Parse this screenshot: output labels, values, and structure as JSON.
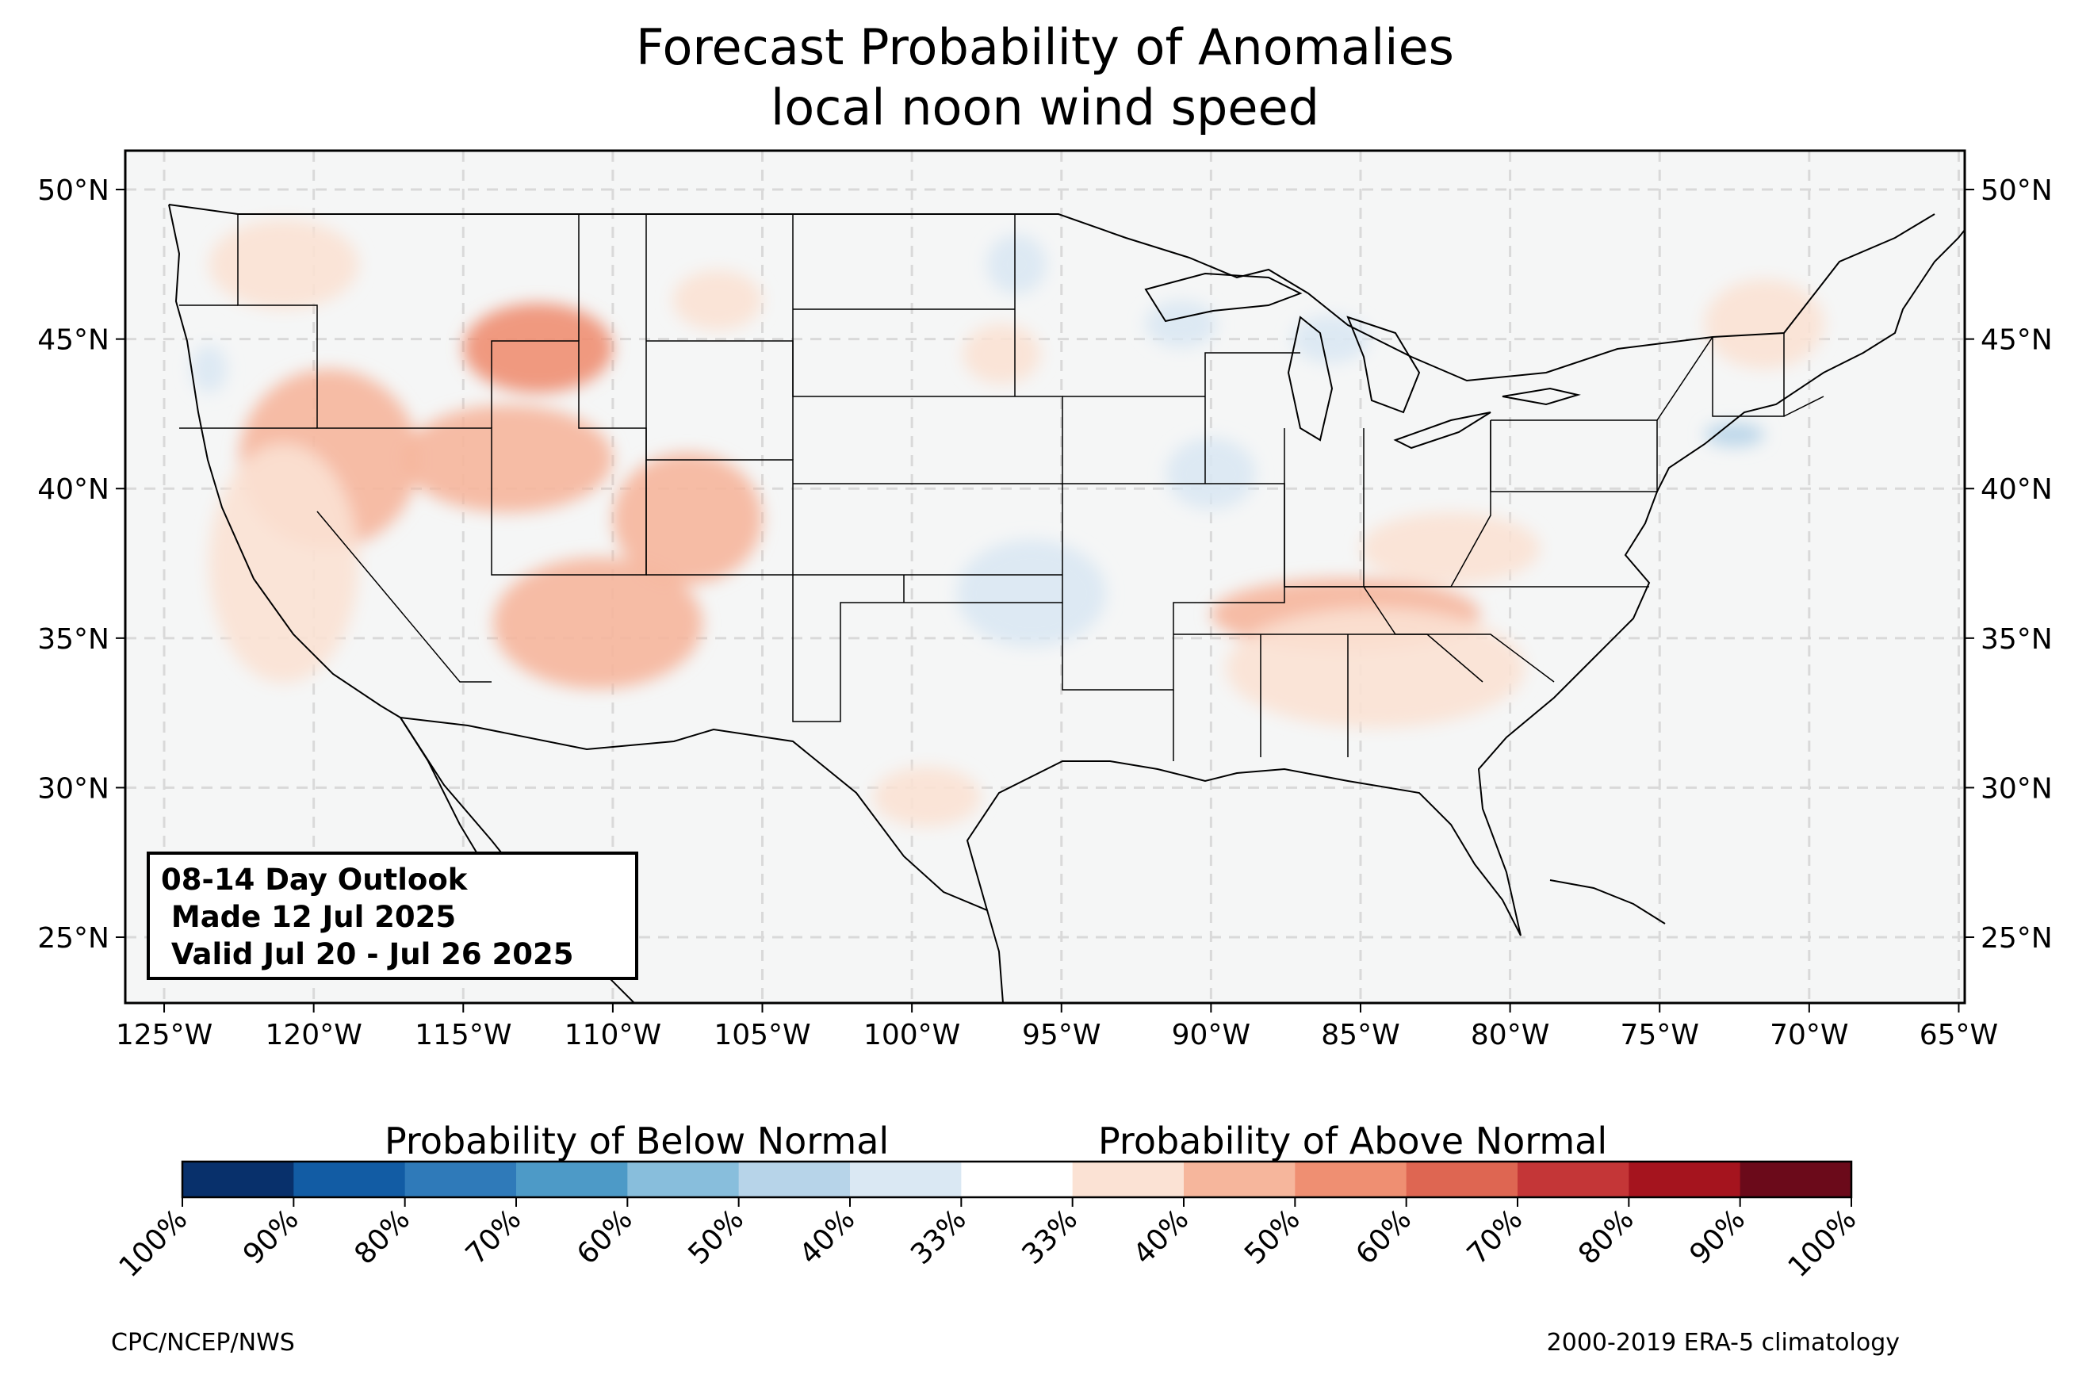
{
  "title": "Forecast Probability of Anomalies",
  "subtitle": "local noon wind speed",
  "info_box": {
    "line1": "08-14 Day Outlook",
    "line2": " Made 12 Jul 2025",
    "line3": " Valid Jul 20 - Jul 26 2025"
  },
  "axes": {
    "lon_ticks": [
      "125°W",
      "120°W",
      "115°W",
      "110°W",
      "105°W",
      "100°W",
      "95°W",
      "90°W",
      "85°W",
      "80°W",
      "75°W",
      "70°W",
      "65°W"
    ],
    "lat_ticks": [
      "25°N",
      "30°N",
      "35°N",
      "40°N",
      "45°N",
      "50°N"
    ],
    "lon_range": [
      -126.3,
      -64.8
    ],
    "lat_range": [
      22.8,
      51.3
    ]
  },
  "colorbar": {
    "below_label": "Probability of Below Normal",
    "above_label": "Probability of Above Normal",
    "tick_labels": [
      "100%",
      "90%",
      "80%",
      "70%",
      "60%",
      "50%",
      "40%",
      "33%",
      "33%",
      "40%",
      "50%",
      "60%",
      "70%",
      "80%",
      "90%",
      "100%"
    ],
    "colors": [
      "#08306b",
      "#125ca4",
      "#2f7ab9",
      "#4d9ac7",
      "#88bedc",
      "#b7d4e9",
      "#dae8f3",
      "#ffffff",
      "#fbe2d4",
      "#f6b69c",
      "#ef8f72",
      "#de6652",
      "#c43637",
      "#a5141e",
      "#6b0a1a"
    ]
  },
  "credit_left": "CPC/NCEP/NWS",
  "credit_right": "2000-2019 ERA-5 climatology",
  "colors": {
    "background": "#f5f6f6",
    "land_line": "#000000",
    "grid": "#d9d9d9"
  },
  "anomaly_regions": [
    {
      "category": "above",
      "level": "50%",
      "lon": -119.5,
      "lat": 41.0,
      "rlon": 3.0,
      "rlat": 3.0
    },
    {
      "category": "above",
      "level": "60%",
      "lon": -112.5,
      "lat": 44.7,
      "rlon": 2.5,
      "rlat": 1.5
    },
    {
      "category": "above",
      "level": "50%",
      "lon": -113.5,
      "lat": 41.0,
      "rlon": 3.5,
      "rlat": 1.8
    },
    {
      "category": "above",
      "level": "50%",
      "lon": -107.5,
      "lat": 39.0,
      "rlon": 2.5,
      "rlat": 2.2
    },
    {
      "category": "above",
      "level": "50%",
      "lon": -110.5,
      "lat": 35.5,
      "rlon": 3.5,
      "rlat": 2.2
    },
    {
      "category": "above",
      "level": "40%",
      "lon": -121.0,
      "lat": 37.5,
      "rlon": 2.5,
      "rlat": 4.0
    },
    {
      "category": "above",
      "level": "40%",
      "lon": -121.0,
      "lat": 47.5,
      "rlon": 2.5,
      "rlat": 1.5
    },
    {
      "category": "above",
      "level": "40%",
      "lon": -106.5,
      "lat": 46.3,
      "rlon": 1.5,
      "rlat": 1.0
    },
    {
      "category": "above",
      "level": "40%",
      "lon": -97.0,
      "lat": 44.5,
      "rlon": 1.3,
      "rlat": 1.0
    },
    {
      "category": "above",
      "level": "50%",
      "lon": -85.5,
      "lat": 35.8,
      "rlon": 4.5,
      "rlat": 1.2
    },
    {
      "category": "above",
      "level": "40%",
      "lon": -84.5,
      "lat": 34.0,
      "rlon": 5.0,
      "rlat": 2.0
    },
    {
      "category": "above",
      "level": "40%",
      "lon": -82.0,
      "lat": 38.0,
      "rlon": 3.0,
      "rlat": 1.2
    },
    {
      "category": "above",
      "level": "40%",
      "lon": -71.5,
      "lat": 45.5,
      "rlon": 2.0,
      "rlat": 1.5
    },
    {
      "category": "above",
      "level": "40%",
      "lon": -99.5,
      "lat": 29.7,
      "rlon": 1.8,
      "rlat": 1.0
    },
    {
      "category": "below",
      "level": "40%",
      "lon": -96.0,
      "lat": 36.5,
      "rlon": 2.5,
      "rlat": 1.8
    },
    {
      "category": "below",
      "level": "40%",
      "lon": -96.5,
      "lat": 47.5,
      "rlon": 1.0,
      "rlat": 1.0
    },
    {
      "category": "below",
      "level": "40%",
      "lon": -91.0,
      "lat": 45.5,
      "rlon": 1.2,
      "rlat": 0.8
    },
    {
      "category": "below",
      "level": "40%",
      "lon": -90.0,
      "lat": 40.5,
      "rlon": 1.5,
      "rlat": 1.2
    },
    {
      "category": "below",
      "level": "40%",
      "lon": -86.0,
      "lat": 45.0,
      "rlon": 1.3,
      "rlat": 0.8
    },
    {
      "category": "below",
      "level": "50%",
      "lon": -72.5,
      "lat": 41.8,
      "rlon": 1.0,
      "rlat": 0.4
    },
    {
      "category": "below",
      "level": "40%",
      "lon": -123.5,
      "lat": 44.0,
      "rlon": 0.6,
      "rlat": 0.8
    }
  ]
}
